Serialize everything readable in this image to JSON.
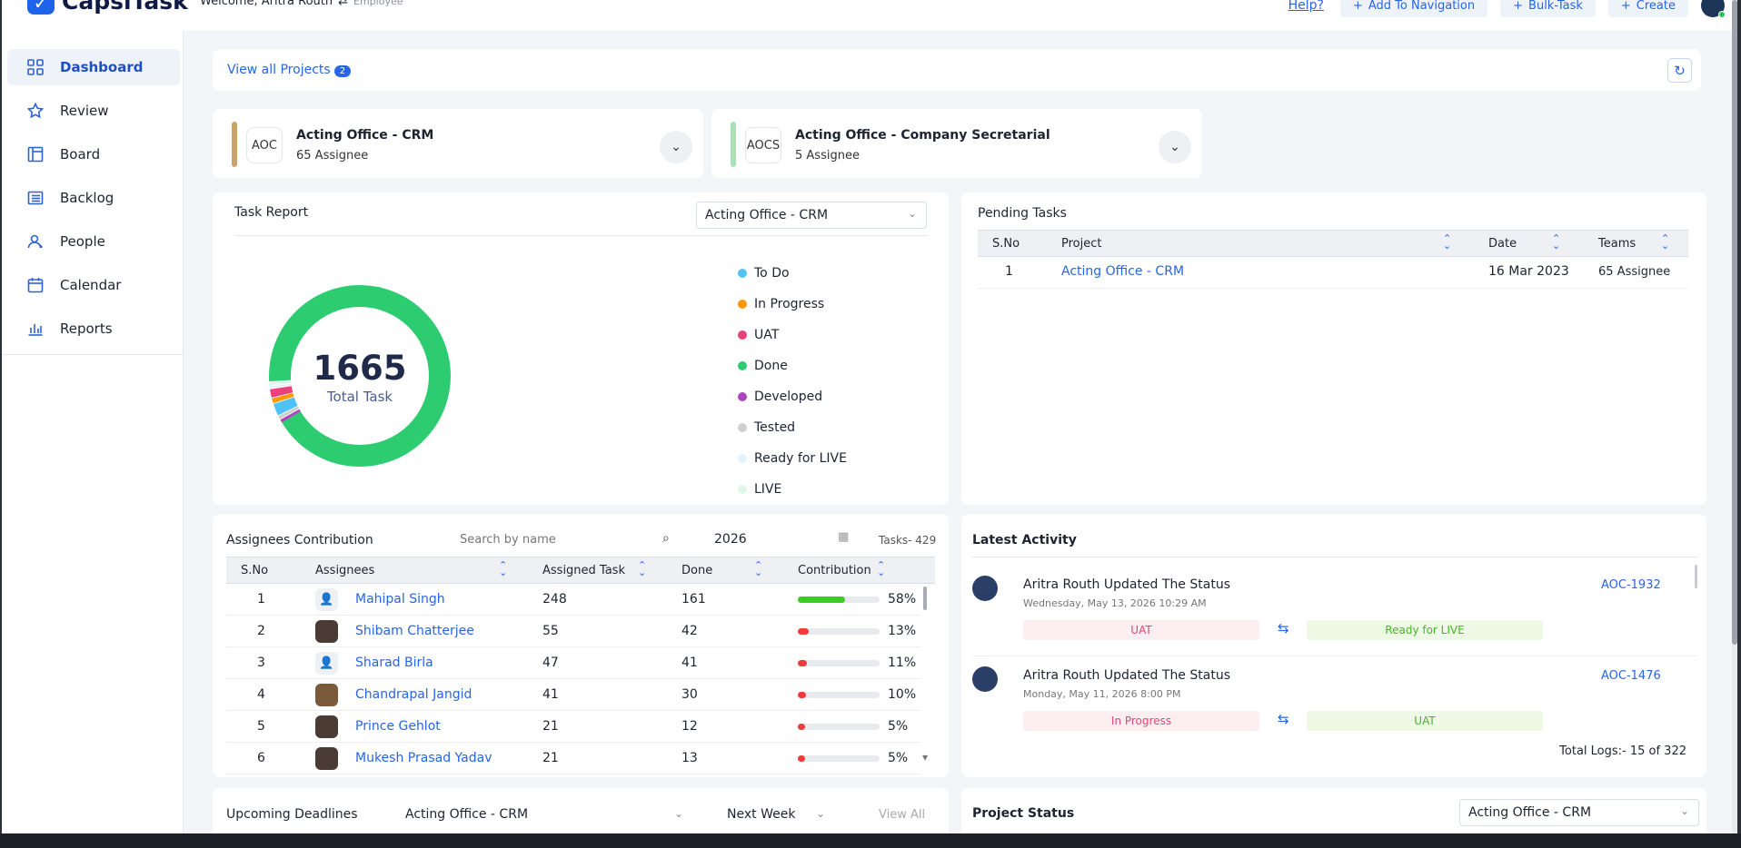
{
  "app": {
    "name": "CapsiTask"
  },
  "header": {
    "welcome": "Welcome, Aritra Routh",
    "role": "Employee",
    "help": "Help?",
    "buttons": [
      "Add To Navigation",
      "Bulk-Task",
      "Create"
    ]
  },
  "sidebar": {
    "items": [
      {
        "label": "Dashboard",
        "icon": "grid-icon"
      },
      {
        "label": "Review",
        "icon": "star-icon"
      },
      {
        "label": "Board",
        "icon": "board-icon"
      },
      {
        "label": "Backlog",
        "icon": "list-icon"
      },
      {
        "label": "People",
        "icon": "people-icon"
      },
      {
        "label": "Calendar",
        "icon": "calendar-icon"
      },
      {
        "label": "Reports",
        "icon": "bar-chart-icon"
      }
    ]
  },
  "projects_bar": {
    "label": "View all Projects",
    "count": "2"
  },
  "projects": [
    {
      "code": "AOC",
      "name": "Acting Office - CRM",
      "assignees": "65 Assignee",
      "color": "#c9a46a"
    },
    {
      "code": "AOCS",
      "name": "Acting Office - Company Secretarial",
      "assignees": "5 Assignee",
      "color": "#a8e0b9"
    }
  ],
  "task_report": {
    "title": "Task Report",
    "project_select": "Acting Office - CRM",
    "total": "1665",
    "total_label": "Total Task"
  },
  "chart_data": {
    "type": "pie",
    "categories": [
      "To Do",
      "In Progress",
      "UAT",
      "Done",
      "Developed",
      "Tested",
      "Ready for LIVE",
      "LIVE"
    ],
    "values": [
      38,
      17,
      27,
      1538,
      12,
      12,
      9,
      12
    ],
    "colors": [
      "#4fc3f7",
      "#ff9800",
      "#ec407a",
      "#2ecc71",
      "#ab47bc",
      "#cfcfcf",
      "#e3f2fd",
      "#e0f7ea"
    ]
  },
  "pending_tasks": {
    "title": "Pending Tasks",
    "headers": [
      "S.No",
      "Project",
      "Date",
      "Teams"
    ],
    "rows": [
      {
        "sno": "1",
        "project": "Acting Office - CRM",
        "date": "16 Mar 2023",
        "teams": "65 Assignee"
      }
    ]
  },
  "contribution": {
    "title": "Assignees Contribution",
    "search_placeholder": "Search by name",
    "year": "2026",
    "tasks": "Tasks- 429",
    "headers": [
      "S.No",
      "Assignees",
      "Assigned Task",
      "Done",
      "Contribution"
    ],
    "rows": [
      {
        "sno": "1",
        "name": "Mahipal Singh",
        "assigned": "248",
        "done": "161",
        "pct": "58%",
        "frac": 0.58,
        "color": "#3ecb28",
        "avatar": "person-icon"
      },
      {
        "sno": "2",
        "name": "Shibam Chatterjee",
        "assigned": "55",
        "done": "42",
        "pct": "13%",
        "frac": 0.13,
        "color": "#ef3b3b",
        "avatar": "photo"
      },
      {
        "sno": "3",
        "name": "Sharad Birla",
        "assigned": "47",
        "done": "41",
        "pct": "11%",
        "frac": 0.11,
        "color": "#ef3b3b",
        "avatar": "person-icon"
      },
      {
        "sno": "4",
        "name": "Chandrapal Jangid",
        "assigned": "41",
        "done": "30",
        "pct": "10%",
        "frac": 0.1,
        "color": "#ef3b3b",
        "avatar": "photo2"
      },
      {
        "sno": "5",
        "name": "Prince Gehlot",
        "assigned": "21",
        "done": "12",
        "pct": "5%",
        "frac": 0.05,
        "color": "#ef3b3b",
        "avatar": "photo"
      },
      {
        "sno": "6",
        "name": "Mukesh Prasad Yadav",
        "assigned": "21",
        "done": "13",
        "pct": "5%",
        "frac": 0.05,
        "color": "#ef3b3b",
        "avatar": "photo"
      }
    ]
  },
  "activity": {
    "title": "Latest Activity",
    "items": [
      {
        "text": "Aritra Routh Updated The Status",
        "date": "Wednesday, May 13, 2026 10:29 AM",
        "id": "AOC-1932",
        "from": "UAT",
        "to": "Ready for LIVE"
      },
      {
        "text": "Aritra Routh Updated The Status",
        "date": "Monday, May 11, 2026 8:00 PM",
        "id": "AOC-1476",
        "from": "In Progress",
        "to": "UAT"
      }
    ],
    "total_logs": "Total Logs:- 15 of 322"
  },
  "deadlines": {
    "title": "Upcoming Deadlines",
    "project_select": "Acting Office - CRM",
    "range_select": "Next Week",
    "view_all": "View All"
  },
  "project_status": {
    "title": "Project Status",
    "project_select": "Acting Office - CRM"
  }
}
